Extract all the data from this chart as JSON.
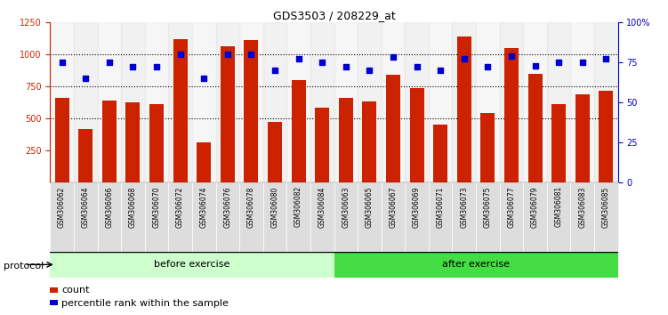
{
  "title": "GDS3503 / 208229_at",
  "categories": [
    "GSM306062",
    "GSM306064",
    "GSM306066",
    "GSM306068",
    "GSM306070",
    "GSM306072",
    "GSM306074",
    "GSM306076",
    "GSM306078",
    "GSM306080",
    "GSM306082",
    "GSM306084",
    "GSM306063",
    "GSM306065",
    "GSM306067",
    "GSM306069",
    "GSM306071",
    "GSM306073",
    "GSM306075",
    "GSM306077",
    "GSM306079",
    "GSM306081",
    "GSM306083",
    "GSM306085"
  ],
  "counts": [
    660,
    415,
    640,
    625,
    610,
    1120,
    315,
    1060,
    1110,
    475,
    800,
    585,
    660,
    635,
    840,
    735,
    455,
    1140,
    545,
    1050,
    845,
    610,
    690,
    715
  ],
  "percentiles": [
    75,
    65,
    75,
    72,
    72,
    80,
    65,
    80,
    80,
    70,
    77,
    75,
    72,
    70,
    78,
    72,
    70,
    77,
    72,
    79,
    73,
    75,
    75,
    77
  ],
  "n_before": 12,
  "n_after": 12,
  "bar_color": "#CC2200",
  "dot_color": "#0000CC",
  "before_color": "#CCFFCC",
  "after_color": "#44DD44",
  "ylim_left": [
    0,
    1250
  ],
  "ylim_right": [
    0,
    100
  ],
  "yticks_left": [
    250,
    500,
    750,
    1000,
    1250
  ],
  "yticks_right": [
    0,
    25,
    50,
    75,
    100
  ],
  "grid_lines": [
    500,
    750,
    1000
  ],
  "background_color": "#ffffff",
  "protocol_label": "protocol"
}
